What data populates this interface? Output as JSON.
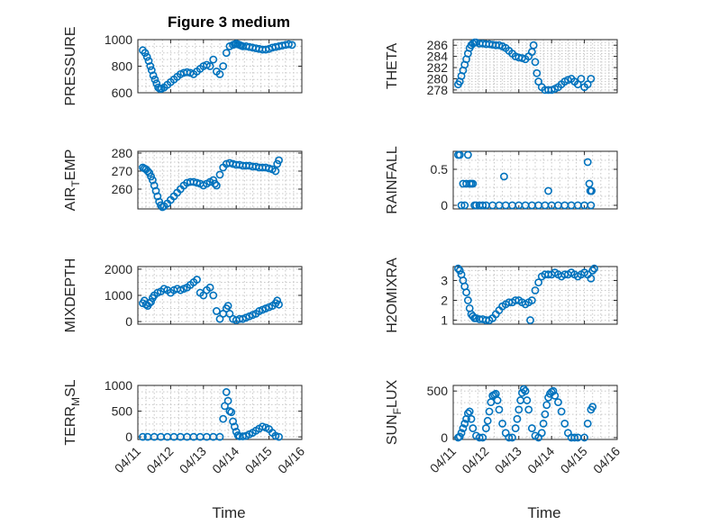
{
  "figure": {
    "title": "Figure 3 medium",
    "accent_color": "#0072bd"
  },
  "chart_data": [
    {
      "type": "scatter",
      "ylabel": "PRESSURE",
      "ylabel_sub": "",
      "ylabel_tail": "",
      "ylim": [
        600,
        1000
      ],
      "yticks": [
        600,
        800,
        1000
      ],
      "xlim": [
        0,
        5
      ],
      "x": [
        0.15,
        0.22,
        0.28,
        0.33,
        0.38,
        0.42,
        0.47,
        0.52,
        0.57,
        0.62,
        0.67,
        0.72,
        0.8,
        0.9,
        1.0,
        1.1,
        1.2,
        1.3,
        1.4,
        1.5,
        1.6,
        1.7,
        1.8,
        1.9,
        2.0,
        2.1,
        2.2,
        2.3,
        2.4,
        2.5,
        2.6,
        2.7,
        2.8,
        2.9,
        2.95,
        3.0,
        3.05,
        3.1,
        3.15,
        3.2,
        3.3,
        3.4,
        3.5,
        3.6,
        3.7,
        3.8,
        3.9,
        4.0,
        4.1,
        4.2,
        4.3,
        4.4,
        4.5,
        4.6,
        4.7
      ],
      "y": [
        920,
        900,
        870,
        840,
        800,
        770,
        730,
        700,
        670,
        640,
        630,
        630,
        640,
        660,
        680,
        700,
        720,
        740,
        750,
        755,
        750,
        740,
        760,
        780,
        800,
        810,
        800,
        850,
        760,
        740,
        800,
        900,
        950,
        960,
        965,
        970,
        965,
        960,
        955,
        950,
        950,
        945,
        940,
        935,
        930,
        925,
        925,
        930,
        940,
        945,
        950,
        955,
        960,
        965,
        960
      ]
    },
    {
      "type": "scatter",
      "ylabel": "THETA",
      "ylabel_sub": "",
      "ylabel_tail": "",
      "ylim": [
        277.5,
        287
      ],
      "yticks": [
        278,
        280,
        282,
        284,
        286
      ],
      "xlim": [
        0,
        5
      ],
      "x": [
        0.15,
        0.2,
        0.25,
        0.3,
        0.35,
        0.4,
        0.45,
        0.5,
        0.55,
        0.6,
        0.65,
        0.7,
        0.8,
        0.9,
        1.0,
        1.1,
        1.2,
        1.3,
        1.4,
        1.5,
        1.6,
        1.7,
        1.8,
        1.9,
        2.0,
        2.1,
        2.2,
        2.3,
        2.4,
        2.45,
        2.5,
        2.55,
        2.6,
        2.7,
        2.8,
        2.9,
        3.0,
        3.1,
        3.2,
        3.3,
        3.4,
        3.5,
        3.6,
        3.7,
        3.8,
        3.9,
        4.0,
        4.1,
        4.2
      ],
      "y": [
        279,
        279.5,
        280.5,
        281.5,
        282.5,
        283.5,
        284.5,
        285.5,
        286,
        286.3,
        286.5,
        286.5,
        286.3,
        286.3,
        286.2,
        286.2,
        286.1,
        286,
        286,
        285.8,
        285.5,
        285,
        284.5,
        284,
        283.8,
        283.7,
        283.5,
        284,
        284.8,
        286,
        283,
        281,
        279.5,
        278.5,
        278,
        278,
        278,
        278.2,
        278.5,
        279,
        279.5,
        279.8,
        280,
        279.5,
        279,
        280,
        278.5,
        279,
        280
      ]
    },
    {
      "type": "scatter",
      "ylabel": "AIR",
      "ylabel_sub": "T",
      "ylabel_tail": "EMP",
      "ylim": [
        249,
        281
      ],
      "yticks": [
        260,
        270,
        280
      ],
      "xlim": [
        0,
        5
      ],
      "x": [
        0.15,
        0.2,
        0.25,
        0.3,
        0.35,
        0.4,
        0.45,
        0.5,
        0.55,
        0.6,
        0.65,
        0.7,
        0.75,
        0.8,
        0.9,
        1.0,
        1.1,
        1.2,
        1.3,
        1.4,
        1.5,
        1.6,
        1.7,
        1.8,
        1.9,
        2.0,
        2.1,
        2.2,
        2.3,
        2.35,
        2.4,
        2.5,
        2.6,
        2.7,
        2.8,
        2.9,
        3.0,
        3.1,
        3.2,
        3.3,
        3.4,
        3.5,
        3.6,
        3.7,
        3.8,
        3.9,
        4.0,
        4.1,
        4.2,
        4.25,
        4.3
      ],
      "y": [
        272,
        271.5,
        271,
        270,
        269,
        267,
        265,
        262,
        259,
        256,
        253,
        251,
        250,
        250.5,
        252,
        254,
        256,
        258,
        260,
        262,
        263.5,
        264,
        264,
        263.5,
        263,
        262,
        263,
        264,
        265,
        263,
        262,
        268,
        272,
        274,
        274.5,
        274,
        273.5,
        273.5,
        273,
        273,
        273,
        272.5,
        272.5,
        272,
        272,
        272,
        271.5,
        271,
        270,
        274,
        276
      ]
    },
    {
      "type": "scatter",
      "ylabel": "RAINFALL",
      "ylabel_sub": "",
      "ylabel_tail": "",
      "ylim": [
        -0.05,
        0.75
      ],
      "yticks": [
        0,
        0.5
      ],
      "xlim": [
        0,
        5
      ],
      "x": [
        0.15,
        0.2,
        0.25,
        0.3,
        0.35,
        0.4,
        0.45,
        0.5,
        0.55,
        0.6,
        0.65,
        0.7,
        0.8,
        0.9,
        1.0,
        1.2,
        1.4,
        1.6,
        1.8,
        2.0,
        2.2,
        2.4,
        2.6,
        2.8,
        3.0,
        3.2,
        3.4,
        3.6,
        3.8,
        4.0,
        4.2,
        1.55,
        2.9,
        4.1,
        4.15,
        4.18,
        4.2,
        4.22
      ],
      "y": [
        0.7,
        0.7,
        0,
        0.3,
        0,
        0.3,
        0.7,
        0.3,
        0.3,
        0.3,
        0,
        0,
        0,
        0,
        0,
        0,
        0,
        0,
        0,
        0,
        0,
        0,
        0,
        0,
        0,
        0,
        0,
        0,
        0,
        0,
        0,
        0.4,
        0.2,
        0.6,
        0.3,
        0.2,
        0.2,
        0.2
      ]
    },
    {
      "type": "scatter",
      "ylabel": "MIXDEPTH",
      "ylabel_sub": "",
      "ylabel_tail": "",
      "ylim": [
        -100,
        2100
      ],
      "yticks": [
        0,
        1000,
        2000
      ],
      "xlim": [
        0,
        5
      ],
      "x": [
        0.15,
        0.2,
        0.25,
        0.3,
        0.35,
        0.4,
        0.45,
        0.5,
        0.6,
        0.7,
        0.8,
        0.9,
        1.0,
        1.1,
        1.2,
        1.3,
        1.4,
        1.5,
        1.6,
        1.7,
        1.8,
        1.9,
        2.0,
        2.1,
        2.2,
        2.3,
        2.4,
        2.5,
        2.6,
        2.7,
        2.75,
        2.8,
        2.9,
        3.0,
        3.1,
        3.2,
        3.3,
        3.4,
        3.5,
        3.6,
        3.7,
        3.8,
        3.9,
        4.0,
        4.1,
        4.2,
        4.25,
        4.3
      ],
      "y": [
        700,
        800,
        650,
        600,
        700,
        750,
        900,
        1000,
        1100,
        1150,
        1250,
        1200,
        1100,
        1200,
        1250,
        1200,
        1250,
        1300,
        1400,
        1500,
        1600,
        1100,
        1000,
        1200,
        1300,
        1000,
        400,
        100,
        300,
        500,
        600,
        300,
        100,
        50,
        100,
        100,
        150,
        200,
        250,
        300,
        400,
        450,
        500,
        550,
        600,
        700,
        800,
        650
      ]
    },
    {
      "type": "scatter",
      "ylabel": "H2OMIXRA",
      "ylabel_sub": "",
      "ylabel_tail": "",
      "ylim": [
        0.8,
        3.7
      ],
      "yticks": [
        1,
        2,
        3
      ],
      "xlim": [
        0,
        5
      ],
      "x": [
        0.15,
        0.2,
        0.25,
        0.3,
        0.35,
        0.4,
        0.45,
        0.5,
        0.55,
        0.6,
        0.65,
        0.7,
        0.8,
        0.9,
        1.0,
        1.1,
        1.2,
        1.3,
        1.4,
        1.5,
        1.6,
        1.7,
        1.8,
        1.9,
        2.0,
        2.1,
        2.2,
        2.3,
        2.35,
        2.4,
        2.5,
        2.6,
        2.7,
        2.8,
        2.9,
        3.0,
        3.1,
        3.2,
        3.3,
        3.4,
        3.5,
        3.6,
        3.7,
        3.8,
        3.9,
        4.0,
        4.1,
        4.2,
        4.25,
        4.3
      ],
      "y": [
        3.6,
        3.5,
        3.3,
        3.0,
        2.7,
        2.4,
        2.0,
        1.6,
        1.3,
        1.2,
        1.1,
        1.1,
        1.05,
        1.05,
        1.0,
        1.0,
        1.1,
        1.3,
        1.5,
        1.7,
        1.8,
        1.9,
        1.9,
        2.0,
        2.0,
        1.9,
        1.8,
        1.9,
        1.0,
        2.0,
        2.5,
        2.9,
        3.2,
        3.3,
        3.3,
        3.3,
        3.4,
        3.3,
        3.2,
        3.3,
        3.3,
        3.4,
        3.3,
        3.2,
        3.3,
        3.4,
        3.3,
        3.1,
        3.5,
        3.6
      ]
    },
    {
      "type": "scatter",
      "ylabel": "TERR",
      "ylabel_sub": "M",
      "ylabel_tail": "SL",
      "ylim": [
        -50,
        1000
      ],
      "yticks": [
        0,
        500,
        1000
      ],
      "xlim": [
        0,
        5
      ],
      "x": [
        0.15,
        0.3,
        0.5,
        0.7,
        0.9,
        1.1,
        1.3,
        1.5,
        1.7,
        1.9,
        2.1,
        2.3,
        2.5,
        2.6,
        2.65,
        2.7,
        2.75,
        2.8,
        2.85,
        2.9,
        2.95,
        3.0,
        3.05,
        3.1,
        3.2,
        3.3,
        3.4,
        3.5,
        3.6,
        3.7,
        3.8,
        3.9,
        4.0,
        4.1,
        4.2,
        4.3
      ],
      "y": [
        0,
        0,
        0,
        0,
        0,
        0,
        0,
        0,
        0,
        0,
        0,
        0,
        0,
        350,
        600,
        870,
        700,
        500,
        480,
        300,
        200,
        100,
        30,
        10,
        10,
        20,
        50,
        80,
        120,
        160,
        200,
        180,
        150,
        80,
        20,
        0
      ]
    },
    {
      "type": "scatter",
      "ylabel": "SUN",
      "ylabel_sub": "F",
      "ylabel_tail": "LUX",
      "ylim": [
        -20,
        560
      ],
      "yticks": [
        0,
        500
      ],
      "xlim": [
        0,
        5
      ],
      "x": [
        0.15,
        0.2,
        0.25,
        0.3,
        0.35,
        0.4,
        0.45,
        0.5,
        0.55,
        0.6,
        0.7,
        0.8,
        0.9,
        1.0,
        1.05,
        1.1,
        1.15,
        1.2,
        1.25,
        1.3,
        1.35,
        1.4,
        1.5,
        1.6,
        1.7,
        1.8,
        1.9,
        1.95,
        2.0,
        2.05,
        2.1,
        2.15,
        2.2,
        2.25,
        2.3,
        2.4,
        2.5,
        2.6,
        2.7,
        2.75,
        2.8,
        2.85,
        2.9,
        2.95,
        3.0,
        3.05,
        3.1,
        3.2,
        3.3,
        3.4,
        3.5,
        3.6,
        3.7,
        3.8,
        4.0,
        4.1,
        4.2,
        4.25
      ],
      "y": [
        0,
        10,
        50,
        100,
        150,
        200,
        260,
        280,
        200,
        100,
        20,
        0,
        0,
        100,
        180,
        280,
        380,
        450,
        460,
        470,
        400,
        300,
        150,
        50,
        0,
        0,
        100,
        200,
        300,
        400,
        480,
        520,
        500,
        400,
        300,
        100,
        20,
        0,
        50,
        150,
        250,
        350,
        430,
        470,
        490,
        500,
        450,
        380,
        280,
        150,
        50,
        0,
        0,
        0,
        0,
        150,
        300,
        330
      ]
    }
  ],
  "x_axis": {
    "label": "Time",
    "ticks": [
      "04/11",
      "04/12",
      "04/13",
      "04/14",
      "04/15",
      "04/16"
    ]
  }
}
